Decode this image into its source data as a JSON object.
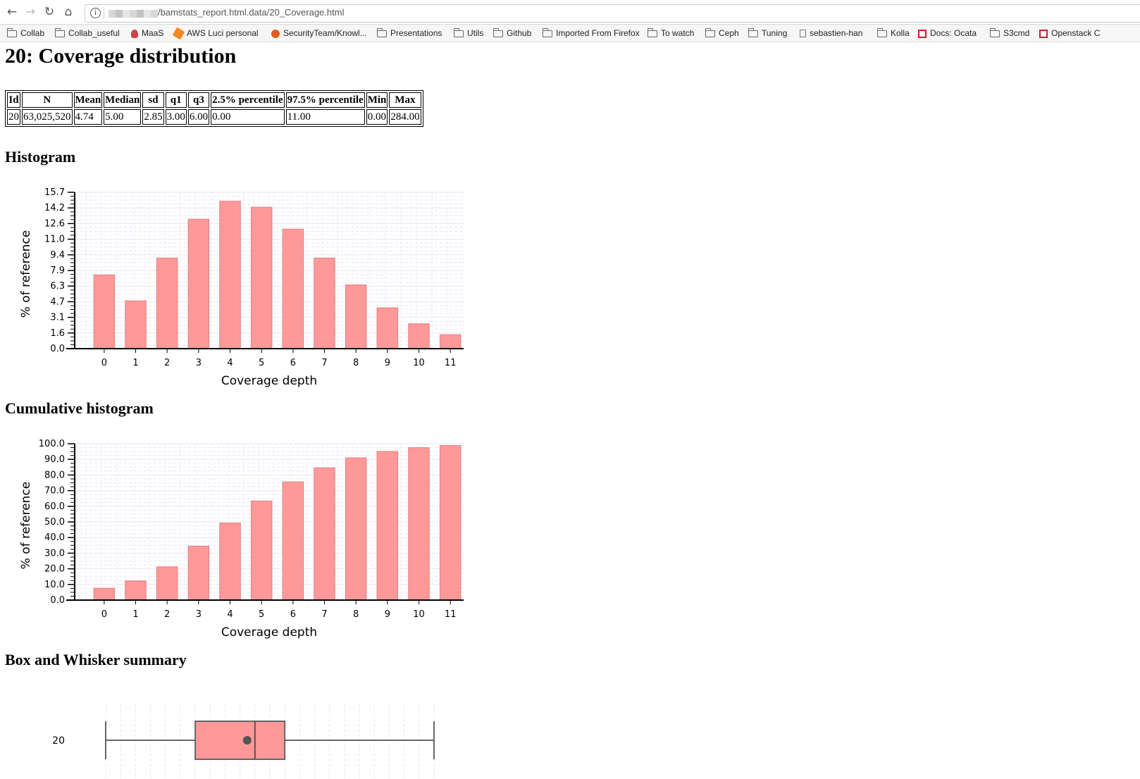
{
  "browser": {
    "back_icon": "arrow-left-icon",
    "forward_icon": "arrow-right-icon",
    "reload_icon": "reload-icon",
    "home_icon": "home-icon",
    "url": "/bamstats_report.html.data/20_Coverage.html",
    "bookmarks": [
      {
        "label": "Collab",
        "icon": "folder-icon"
      },
      {
        "label": "Collab_useful",
        "icon": "folder-icon"
      },
      {
        "label": "MaaS",
        "icon": "maas-icon"
      },
      {
        "label": "AWS Luci personal",
        "icon": "aws-icon"
      },
      {
        "label": "SecurityTeam/Knowl...",
        "icon": "ubuntu-icon"
      },
      {
        "label": "Presentations",
        "icon": "folder-icon"
      },
      {
        "label": "Utils",
        "icon": "folder-icon"
      },
      {
        "label": "Github",
        "icon": "folder-icon"
      },
      {
        "label": "Imported From Firefox",
        "icon": "folder-icon"
      },
      {
        "label": "To watch",
        "icon": "folder-icon"
      },
      {
        "label": "Ceph",
        "icon": "folder-icon"
      },
      {
        "label": "Tuning",
        "icon": "folder-icon"
      },
      {
        "label": "sebastien-han",
        "icon": "page-icon"
      },
      {
        "label": "Kolla",
        "icon": "folder-icon"
      },
      {
        "label": "Docs: Ocata",
        "icon": "openstack-icon"
      },
      {
        "label": "S3cmd",
        "icon": "folder-icon"
      },
      {
        "label": "Openstack C",
        "icon": "openstack-icon"
      }
    ]
  },
  "page": {
    "title": "20: Coverage distribution",
    "stats_table": {
      "headers": [
        "Id",
        "N",
        "Mean",
        "Median",
        "sd",
        "q1",
        "q3",
        "2.5% percentile",
        "97.5% percentile",
        "Min",
        "Max"
      ],
      "row": [
        "20",
        "63,025,520",
        "4.74",
        "5.00",
        "2.85",
        "3.00",
        "6.00",
        "0.00",
        "11.00",
        "0.00",
        "284.00"
      ]
    },
    "histogram_heading": "Histogram",
    "cumulative_heading": "Cumulative histogram",
    "boxplot_heading": "Box and Whisker summary"
  },
  "chart_data": [
    {
      "type": "bar",
      "title": "Histogram",
      "xlabel": "Coverage depth",
      "ylabel": "% of reference",
      "categories": [
        "0",
        "1",
        "2",
        "3",
        "4",
        "5",
        "6",
        "7",
        "8",
        "9",
        "10",
        "11"
      ],
      "values": [
        7.4,
        4.8,
        9.1,
        13.0,
        14.8,
        14.2,
        12.0,
        9.1,
        6.4,
        4.1,
        2.5,
        1.4
      ],
      "yticks": [
        "0.0",
        "1.6",
        "3.1",
        "4.7",
        "6.3",
        "7.9",
        "9.4",
        "11.0",
        "12.6",
        "14.2",
        "15.7"
      ],
      "ylim": [
        0,
        15.7
      ],
      "grid": true,
      "bar_color": "#ff9999"
    },
    {
      "type": "bar",
      "title": "Cumulative histogram",
      "xlabel": "Coverage depth",
      "ylabel": "% of reference",
      "categories": [
        "0",
        "1",
        "2",
        "3",
        "4",
        "5",
        "6",
        "7",
        "8",
        "9",
        "10",
        "11"
      ],
      "values": [
        7.6,
        12.3,
        21.3,
        34.5,
        49.3,
        63.4,
        75.6,
        84.6,
        91.0,
        95.1,
        97.5,
        98.9
      ],
      "yticks": [
        "0.0",
        "10.0",
        "20.0",
        "30.0",
        "40.0",
        "50.0",
        "60.0",
        "70.0",
        "80.0",
        "90.0",
        "100.0"
      ],
      "ylim": [
        0,
        100
      ],
      "grid": true,
      "bar_color": "#ff9999"
    },
    {
      "type": "box",
      "title": "Box and Whisker summary",
      "label": "20",
      "min": 0,
      "q1": 3,
      "median": 5,
      "q3": 6,
      "max": 11,
      "mean": 4.74,
      "x_domain": [
        0,
        11
      ],
      "box_color": "#ff9999"
    }
  ]
}
